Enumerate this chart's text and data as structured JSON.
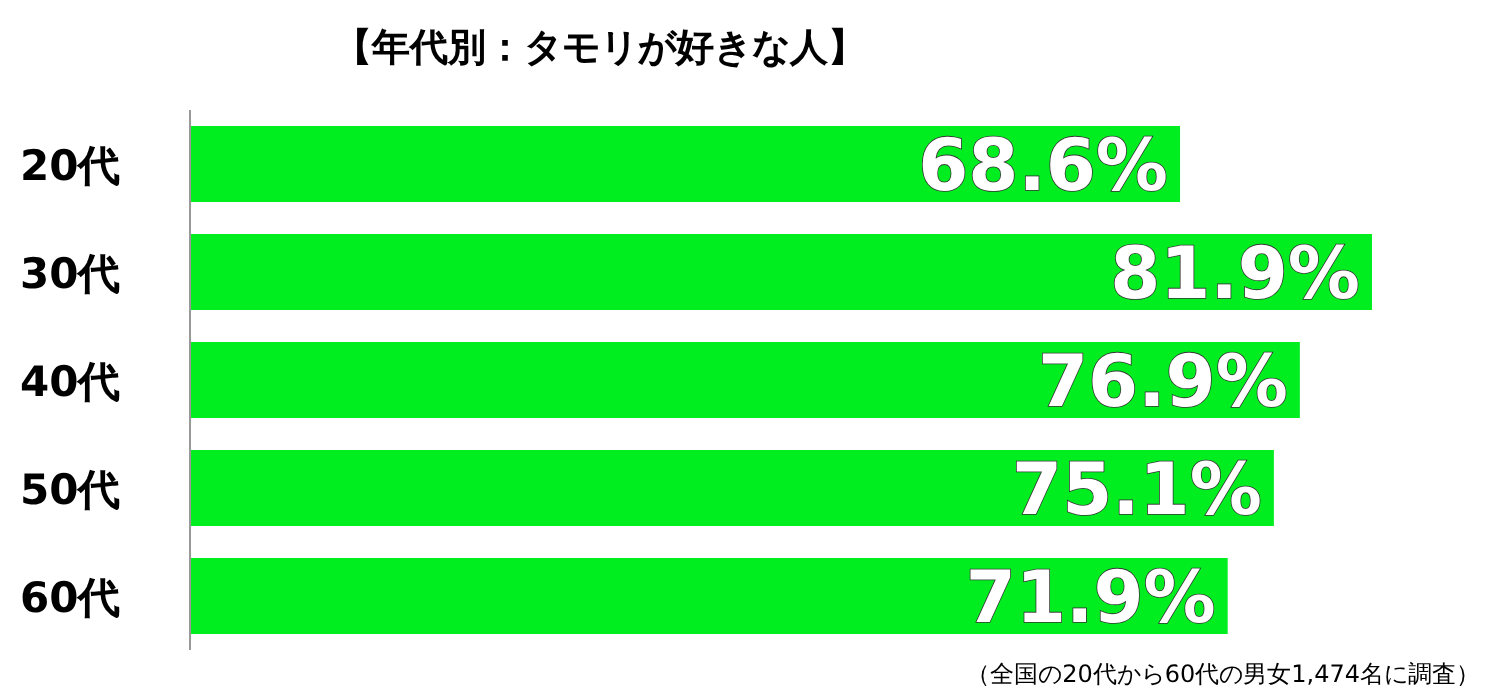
{
  "chart_data": {
    "type": "bar",
    "orientation": "horizontal",
    "title": "【年代別：タモリが好きな人】",
    "categories": [
      "20代",
      "30代",
      "40代",
      "50代",
      "60代"
    ],
    "values": [
      68.6,
      81.9,
      76.9,
      75.1,
      71.9
    ],
    "value_labels": [
      "68.6%",
      "81.9%",
      "76.9%",
      "75.1%",
      "71.9%"
    ],
    "color": "#00ee1f",
    "annotations": [
      "（全国の20代から60代の男女1,474名に調査）"
    ]
  }
}
